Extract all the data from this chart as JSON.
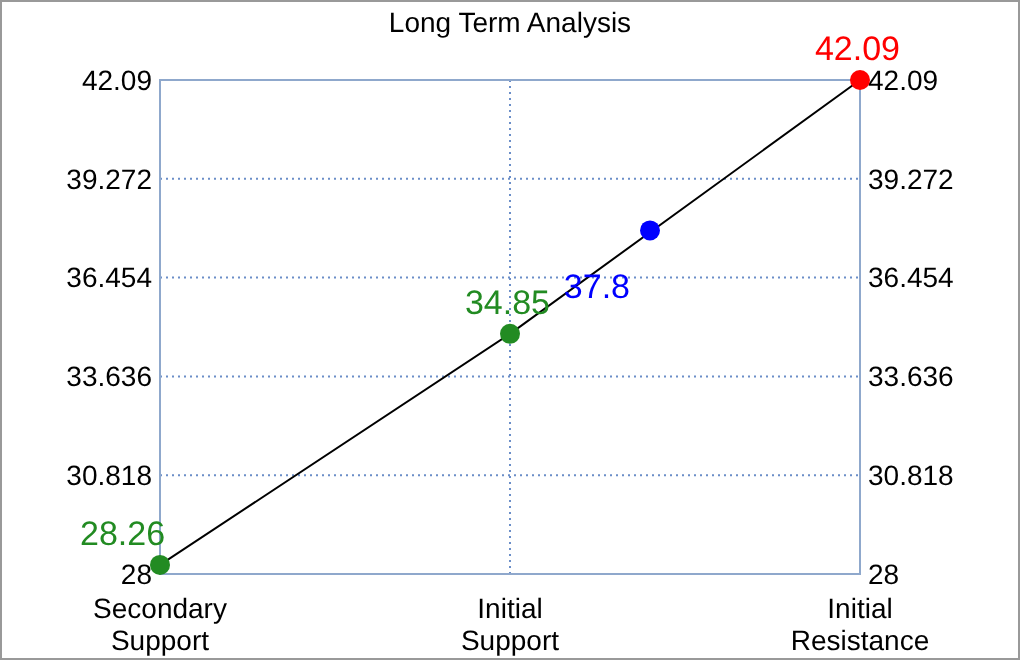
{
  "chart_data": {
    "type": "line",
    "title": "Long Term Analysis",
    "categories": [
      "Secondary Support",
      null,
      null,
      null,
      null,
      "Initial Support",
      null,
      null,
      null,
      null,
      "Initial Resistance"
    ],
    "ylim": [
      28,
      42.09
    ],
    "yticks": [
      28,
      30.818,
      33.636,
      36.454,
      39.272,
      42.09
    ],
    "y2lim": [
      28,
      42.09
    ],
    "y2ticks": [
      28,
      30.818,
      33.636,
      36.454,
      39.272,
      42.09
    ],
    "grid": true,
    "data_labels": true,
    "marker": "circle",
    "series": [
      {
        "color": "#000000",
        "colors": [
          "#228b22",
          null,
          null,
          null,
          null,
          "#228b22",
          null,
          null,
          null,
          null,
          "#ff0000"
        ],
        "values": [
          28.26,
          null,
          null,
          null,
          null,
          34.85,
          null,
          null,
          null,
          null,
          42.09
        ]
      },
      {
        "type": "scatter",
        "color": "#0000ff",
        "values": [
          null,
          null,
          null,
          null,
          null,
          null,
          null,
          37.8,
          null,
          null,
          null
        ]
      }
    ]
  }
}
